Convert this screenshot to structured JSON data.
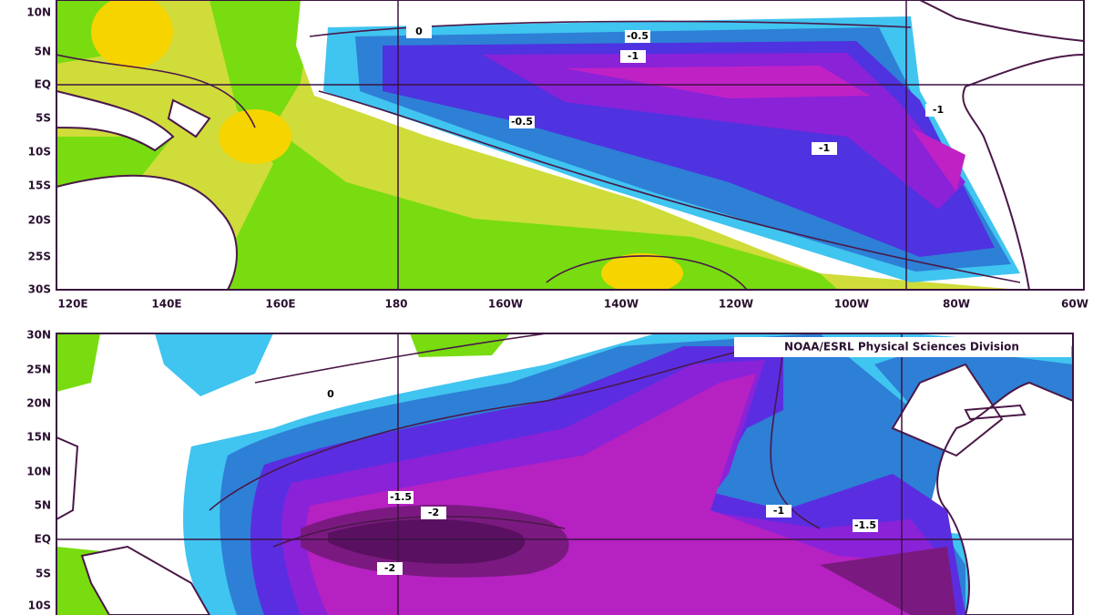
{
  "top_map": {
    "lat_labels": [
      "10N",
      "5N",
      "EQ",
      "5S",
      "10S",
      "15S",
      "20S",
      "25S",
      "30S"
    ],
    "lon_labels": [
      "120E",
      "140E",
      "160E",
      "180",
      "160W",
      "140W",
      "120W",
      "100W",
      "80W",
      "60W"
    ],
    "contour_labels": [
      "0",
      "-0.5",
      "-1",
      "-0.5",
      "-1",
      "-1"
    ]
  },
  "bottom_map": {
    "lat_labels": [
      "30N",
      "25N",
      "20N",
      "15N",
      "10N",
      "5N",
      "EQ",
      "5S",
      "10S"
    ],
    "credit": "NOAA/ESRL Physical Sciences Division",
    "contour_labels": [
      "0",
      "-1.5",
      "-2",
      "-2",
      "-1",
      "-1.5"
    ]
  }
}
